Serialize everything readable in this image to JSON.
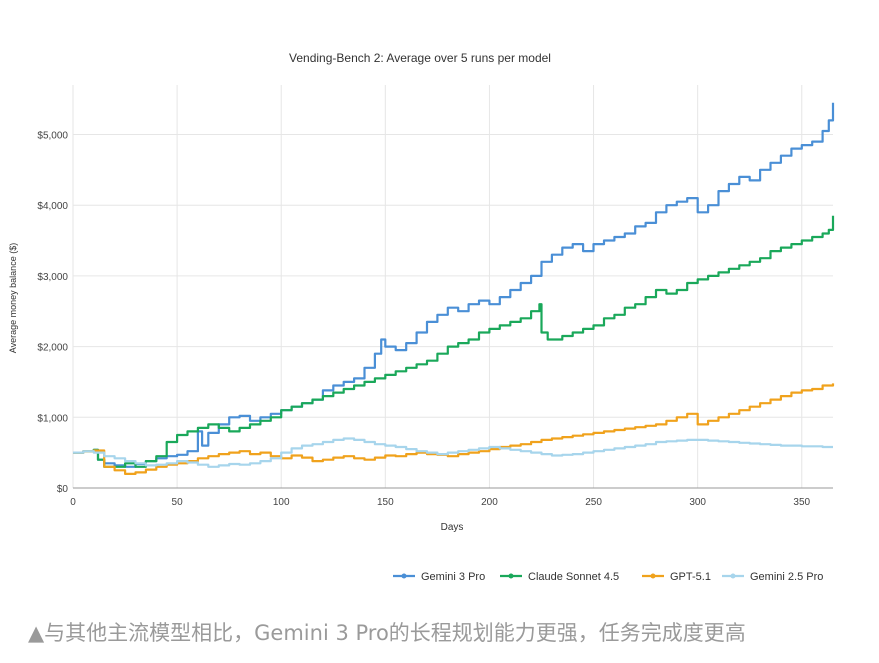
{
  "chart_data": {
    "type": "line",
    "title": "Vending-Bench 2: Average over 5 runs per model",
    "xlabel": "Days",
    "ylabel": "Average money balance ($)",
    "xlim": [
      0,
      365
    ],
    "ylim": [
      0,
      5700
    ],
    "x_ticks": [
      0,
      50,
      100,
      150,
      200,
      250,
      300,
      350
    ],
    "x_tick_labels": [
      "0",
      "50",
      "100",
      "150",
      "200",
      "250",
      "300",
      "350"
    ],
    "y_ticks": [
      0,
      1000,
      2000,
      3000,
      4000,
      5000
    ],
    "y_tick_labels": [
      "$0",
      "$1,000",
      "$2,000",
      "$3,000",
      "$4,000",
      "$5,000"
    ],
    "grid": true,
    "legend_position": "bottom-right",
    "series": [
      {
        "name": "Gemini 3 Pro",
        "color": "#4a8fd6",
        "x": [
          0,
          5,
          10,
          12,
          15,
          20,
          25,
          30,
          35,
          40,
          45,
          50,
          55,
          60,
          62,
          65,
          70,
          75,
          80,
          85,
          90,
          95,
          100,
          105,
          110,
          115,
          120,
          125,
          130,
          135,
          140,
          145,
          148,
          150,
          155,
          160,
          165,
          170,
          175,
          180,
          185,
          190,
          195,
          200,
          205,
          210,
          215,
          220,
          225,
          230,
          235,
          240,
          245,
          250,
          255,
          260,
          265,
          270,
          275,
          280,
          285,
          290,
          295,
          300,
          305,
          310,
          315,
          320,
          325,
          330,
          335,
          340,
          345,
          350,
          355,
          360,
          363,
          365
        ],
        "values": [
          500,
          520,
          540,
          400,
          350,
          320,
          300,
          340,
          380,
          420,
          450,
          470,
          520,
          800,
          600,
          780,
          900,
          1000,
          1020,
          950,
          1000,
          1050,
          1100,
          1150,
          1200,
          1250,
          1380,
          1450,
          1500,
          1550,
          1700,
          1900,
          2100,
          2000,
          1950,
          2050,
          2200,
          2350,
          2450,
          2550,
          2500,
          2600,
          2650,
          2600,
          2700,
          2800,
          2900,
          3000,
          3200,
          3300,
          3400,
          3450,
          3350,
          3450,
          3500,
          3550,
          3600,
          3700,
          3750,
          3900,
          4000,
          4050,
          4100,
          3900,
          4000,
          4200,
          4300,
          4400,
          4350,
          4500,
          4600,
          4700,
          4800,
          4850,
          4900,
          5050,
          5200,
          5450
        ]
      },
      {
        "name": "Claude Sonnet 4.5",
        "color": "#1aa85a",
        "x": [
          0,
          5,
          10,
          12,
          15,
          20,
          25,
          30,
          35,
          40,
          45,
          50,
          55,
          60,
          65,
          70,
          75,
          80,
          85,
          90,
          95,
          100,
          105,
          110,
          115,
          120,
          125,
          130,
          135,
          140,
          145,
          150,
          155,
          160,
          165,
          170,
          175,
          180,
          185,
          190,
          195,
          200,
          205,
          210,
          215,
          220,
          224,
          225,
          228,
          235,
          240,
          245,
          250,
          255,
          260,
          265,
          270,
          275,
          280,
          285,
          290,
          295,
          300,
          305,
          310,
          315,
          320,
          325,
          330,
          335,
          340,
          345,
          350,
          355,
          360,
          363,
          365
        ],
        "values": [
          500,
          520,
          540,
          400,
          300,
          300,
          350,
          300,
          380,
          450,
          650,
          750,
          800,
          850,
          900,
          850,
          800,
          850,
          900,
          950,
          1000,
          1100,
          1150,
          1200,
          1250,
          1300,
          1350,
          1400,
          1450,
          1500,
          1550,
          1600,
          1650,
          1700,
          1750,
          1800,
          1900,
          2000,
          2050,
          2100,
          2200,
          2250,
          2300,
          2350,
          2400,
          2500,
          2600,
          2200,
          2100,
          2150,
          2200,
          2250,
          2300,
          2400,
          2450,
          2550,
          2600,
          2700,
          2800,
          2750,
          2800,
          2900,
          2950,
          3000,
          3050,
          3100,
          3150,
          3200,
          3250,
          3350,
          3400,
          3450,
          3500,
          3550,
          3600,
          3650,
          3850
        ]
      },
      {
        "name": "GPT-5.1",
        "color": "#f0a21c",
        "x": [
          0,
          5,
          10,
          15,
          20,
          25,
          30,
          35,
          40,
          45,
          50,
          55,
          60,
          65,
          70,
          75,
          80,
          85,
          90,
          95,
          100,
          105,
          110,
          115,
          120,
          125,
          130,
          135,
          140,
          145,
          150,
          155,
          160,
          165,
          170,
          175,
          180,
          185,
          190,
          195,
          200,
          205,
          210,
          215,
          220,
          225,
          230,
          235,
          240,
          245,
          250,
          255,
          260,
          265,
          270,
          275,
          280,
          285,
          290,
          295,
          300,
          305,
          310,
          315,
          320,
          325,
          330,
          335,
          340,
          345,
          350,
          355,
          360,
          365
        ],
        "values": [
          500,
          520,
          530,
          300,
          250,
          200,
          220,
          260,
          300,
          330,
          350,
          380,
          420,
          450,
          480,
          500,
          520,
          480,
          500,
          450,
          420,
          460,
          430,
          380,
          400,
          430,
          450,
          420,
          400,
          430,
          460,
          450,
          480,
          500,
          480,
          470,
          450,
          480,
          500,
          520,
          550,
          580,
          600,
          620,
          650,
          680,
          700,
          720,
          740,
          760,
          780,
          800,
          820,
          840,
          860,
          880,
          900,
          950,
          1000,
          1050,
          900,
          950,
          1000,
          1050,
          1100,
          1150,
          1200,
          1250,
          1300,
          1350,
          1380,
          1400,
          1450,
          1480
        ]
      },
      {
        "name": "Gemini 2.5 Pro",
        "color": "#a7d5ec",
        "x": [
          0,
          5,
          10,
          15,
          20,
          25,
          30,
          35,
          40,
          45,
          50,
          55,
          60,
          65,
          70,
          75,
          80,
          85,
          90,
          95,
          100,
          105,
          110,
          115,
          120,
          125,
          130,
          135,
          140,
          145,
          150,
          155,
          160,
          165,
          170,
          175,
          180,
          185,
          190,
          195,
          200,
          205,
          210,
          215,
          220,
          225,
          230,
          235,
          240,
          245,
          250,
          255,
          260,
          265,
          270,
          275,
          280,
          285,
          290,
          295,
          300,
          305,
          310,
          315,
          320,
          325,
          330,
          335,
          340,
          345,
          350,
          355,
          360,
          365
        ],
        "values": [
          500,
          520,
          500,
          450,
          420,
          380,
          350,
          320,
          330,
          350,
          380,
          360,
          330,
          300,
          320,
          340,
          330,
          350,
          380,
          420,
          500,
          560,
          600,
          620,
          650,
          680,
          700,
          680,
          650,
          620,
          600,
          580,
          550,
          520,
          500,
          480,
          500,
          520,
          540,
          560,
          580,
          560,
          540,
          520,
          500,
          480,
          460,
          470,
          480,
          500,
          520,
          540,
          560,
          580,
          600,
          620,
          650,
          660,
          670,
          680,
          680,
          670,
          660,
          650,
          640,
          630,
          620,
          610,
          600,
          600,
          590,
          590,
          580,
          580
        ]
      }
    ]
  },
  "caption": "▲与其他主流模型相比，Gemini 3 Pro的长程规划能力更强，任务完成度更高"
}
